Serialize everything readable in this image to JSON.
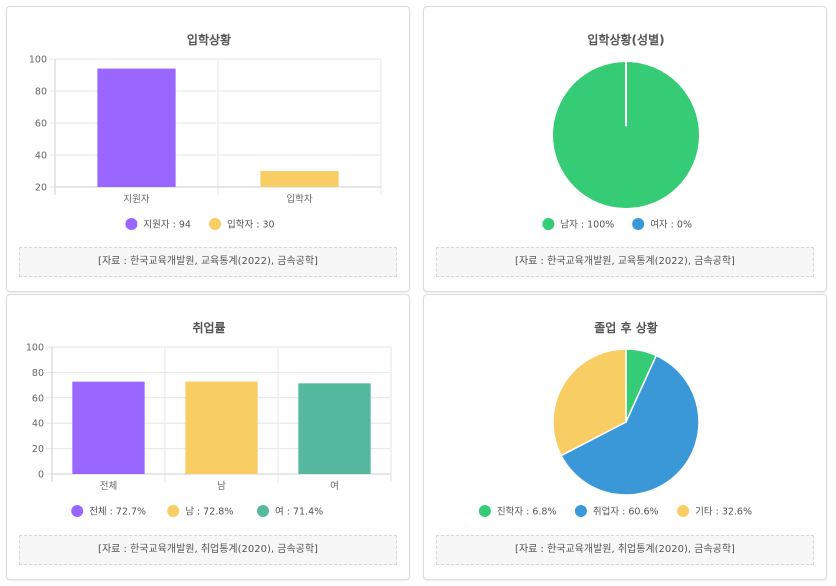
{
  "colors": {
    "purple": "#9966ff",
    "yellow": "#f8cd63",
    "teal": "#55b9a0",
    "green": "#35cc75",
    "blue": "#3a98d8"
  },
  "panels": [
    {
      "source": "[자료 : 한국교육개발원, 교육통계(2022), 금속공학]",
      "chart_data": {
        "type": "bar",
        "title": "입학상황",
        "categories": [
          "지원자",
          "입학자"
        ],
        "values": [
          94,
          30
        ],
        "colors": [
          "#9966ff",
          "#f8cd63"
        ],
        "ylim": [
          20,
          100
        ],
        "yticks": [
          20,
          40,
          60,
          80,
          100
        ],
        "legend": [
          "지원자 : 94",
          "입학자 : 30"
        ],
        "legend_position": "bottom",
        "grid": true
      }
    },
    {
      "source": "[자료 : 한국교육개발원, 교육통계(2022), 금속공학]",
      "chart_data": {
        "type": "pie",
        "title": "입학상황(성별)",
        "categories": [
          "남자",
          "여자"
        ],
        "values": [
          100,
          0
        ],
        "colors": [
          "#35cc75",
          "#3a98d8"
        ],
        "legend": [
          "남자 : 100%",
          "여자 : 0%"
        ],
        "legend_position": "bottom"
      }
    },
    {
      "source": "[자료 : 한국교육개발원, 취업통계(2020), 금속공학]",
      "chart_data": {
        "type": "bar",
        "title": "취업률",
        "categories": [
          "전체",
          "남",
          "여"
        ],
        "values": [
          72.7,
          72.8,
          71.4
        ],
        "colors": [
          "#9966ff",
          "#f8cd63",
          "#55b9a0"
        ],
        "ylim": [
          0,
          100
        ],
        "yticks": [
          0,
          20,
          40,
          60,
          80,
          100
        ],
        "legend": [
          "전체 : 72.7%",
          "남 : 72.8%",
          "여 : 71.4%"
        ],
        "legend_position": "bottom",
        "grid": true
      }
    },
    {
      "source": "[자료 : 한국교육개발원, 취업통계(2020), 금속공학]",
      "chart_data": {
        "type": "pie",
        "title": "졸업 후 상황",
        "categories": [
          "진학자",
          "취업자",
          "기타"
        ],
        "values": [
          6.8,
          60.6,
          32.6
        ],
        "colors": [
          "#35cc75",
          "#3a98d8",
          "#f8cd63"
        ],
        "legend": [
          "진학자 : 6.8%",
          "취업자 : 60.6%",
          "기타 : 32.6%"
        ],
        "legend_position": "bottom"
      }
    }
  ]
}
